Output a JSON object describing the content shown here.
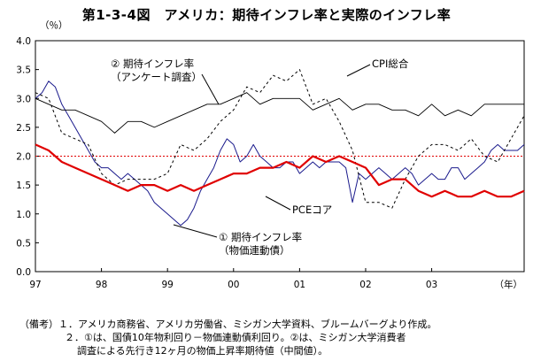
{
  "title": "第1-3-4図　アメリカ：期待インフレ率と実際のインフレ率",
  "chart_data": {
    "type": "line",
    "y_unit": "（％）",
    "x_unit": "（年）",
    "ylim": [
      0.0,
      4.0
    ],
    "y_ticks": [
      "0.0",
      "0.5",
      "1.0",
      "1.5",
      "2.0",
      "2.5",
      "3.0",
      "3.5",
      "4.0"
    ],
    "x_ticks": [
      "97",
      "98",
      "99",
      "00",
      "01",
      "02",
      "03"
    ],
    "xlim": [
      1997.0,
      2004.4
    ],
    "reference_line": {
      "y": 2.0,
      "style": "red-dotted"
    },
    "grid": false,
    "series": [
      {
        "name": "① 期待インフレ率（物価連動債）",
        "style": "blue-thin",
        "color": "#1a1a8c",
        "x": [
          1997.0,
          1997.1,
          1997.2,
          1997.3,
          1997.4,
          1997.5,
          1997.6,
          1997.7,
          1997.8,
          1997.9,
          1998.0,
          1998.1,
          1998.2,
          1998.3,
          1998.4,
          1998.5,
          1998.6,
          1998.7,
          1998.8,
          1998.9,
          1999.0,
          1999.1,
          1999.2,
          1999.3,
          1999.4,
          1999.5,
          1999.6,
          1999.7,
          1999.8,
          1999.9,
          2000.0,
          2000.1,
          2000.2,
          2000.3,
          2000.4,
          2000.5,
          2000.6,
          2000.7,
          2000.8,
          2000.9,
          2001.0,
          2001.1,
          2001.2,
          2001.3,
          2001.4,
          2001.5,
          2001.6,
          2001.7,
          2001.8,
          2001.9,
          2002.0,
          2002.1,
          2002.2,
          2002.3,
          2002.4,
          2002.5,
          2002.6,
          2002.7,
          2002.8,
          2002.9,
          2003.0,
          2003.1,
          2003.2,
          2003.3,
          2003.4,
          2003.5,
          2003.6,
          2003.7,
          2003.8,
          2003.9,
          2004.0,
          2004.1,
          2004.2,
          2004.3,
          2004.4
        ],
        "values": [
          3.0,
          3.1,
          3.3,
          3.2,
          2.9,
          2.7,
          2.5,
          2.3,
          2.1,
          1.9,
          1.8,
          1.8,
          1.7,
          1.6,
          1.7,
          1.6,
          1.5,
          1.4,
          1.2,
          1.1,
          1.0,
          0.9,
          0.8,
          0.9,
          1.1,
          1.4,
          1.6,
          1.8,
          2.1,
          2.3,
          2.2,
          1.9,
          2.0,
          2.2,
          2.0,
          1.9,
          1.8,
          1.8,
          1.9,
          1.9,
          1.7,
          1.8,
          1.9,
          1.8,
          1.9,
          1.9,
          1.9,
          1.8,
          1.2,
          1.7,
          1.6,
          1.7,
          1.8,
          1.7,
          1.6,
          1.7,
          1.8,
          1.7,
          1.5,
          1.6,
          1.7,
          1.6,
          1.6,
          1.8,
          1.8,
          1.6,
          1.7,
          1.8,
          1.9,
          2.1,
          2.2,
          2.1,
          2.1,
          2.1,
          2.2
        ]
      },
      {
        "name": "② 期待インフレ率（アンケート調査）",
        "style": "black-thin",
        "color": "#000000",
        "x": [
          1997.0,
          1997.2,
          1997.4,
          1997.6,
          1997.8,
          1998.0,
          1998.2,
          1998.4,
          1998.6,
          1998.8,
          1999.0,
          1999.2,
          1999.4,
          1999.6,
          1999.8,
          2000.0,
          2000.2,
          2000.4,
          2000.6,
          2000.8,
          2001.0,
          2001.2,
          2001.4,
          2001.6,
          2001.8,
          2002.0,
          2002.2,
          2002.4,
          2002.6,
          2002.8,
          2003.0,
          2003.2,
          2003.4,
          2003.6,
          2003.8,
          2004.0,
          2004.2,
          2004.4
        ],
        "values": [
          3.0,
          2.9,
          2.8,
          2.8,
          2.7,
          2.6,
          2.4,
          2.6,
          2.6,
          2.5,
          2.6,
          2.7,
          2.8,
          2.9,
          2.9,
          3.0,
          3.1,
          2.9,
          3.0,
          3.0,
          3.0,
          2.8,
          2.9,
          3.0,
          2.8,
          2.9,
          2.9,
          2.8,
          2.8,
          2.7,
          2.9,
          2.7,
          2.8,
          2.7,
          2.9,
          2.9,
          2.9,
          2.9
        ]
      },
      {
        "name": "CPI総合",
        "style": "black-solid",
        "color": "#000000",
        "x": [
          1997.0,
          1997.2,
          1997.4,
          1997.6,
          1997.8,
          1998.0,
          1998.2,
          1998.4,
          1998.6,
          1998.8,
          1999.0,
          1999.2,
          1999.4,
          1999.6,
          1999.8,
          2000.0,
          2000.2,
          2000.4,
          2000.6,
          2000.8,
          2001.0,
          2001.2,
          2001.4,
          2001.6,
          2001.8,
          2002.0,
          2002.2,
          2002.4,
          2002.6,
          2002.8,
          2003.0,
          2003.2,
          2003.4,
          2003.6,
          2003.8,
          2004.0,
          2004.2,
          2004.4
        ],
        "values": [
          3.1,
          3.0,
          2.4,
          2.3,
          2.2,
          1.7,
          1.5,
          1.6,
          1.6,
          1.6,
          1.7,
          2.2,
          2.1,
          2.3,
          2.6,
          2.8,
          3.2,
          3.1,
          3.4,
          3.3,
          3.5,
          2.9,
          3.0,
          2.6,
          2.1,
          1.2,
          1.2,
          1.1,
          1.6,
          2.0,
          2.2,
          2.2,
          2.1,
          2.3,
          2.0,
          1.9,
          2.3,
          2.7
        ]
      },
      {
        "name": "PCEコア",
        "style": "red-thick",
        "color": "#e00000",
        "x": [
          1997.0,
          1997.2,
          1997.4,
          1997.6,
          1997.8,
          1998.0,
          1998.2,
          1998.4,
          1998.6,
          1998.8,
          1999.0,
          1999.2,
          1999.4,
          1999.6,
          1999.8,
          2000.0,
          2000.2,
          2000.4,
          2000.6,
          2000.8,
          2001.0,
          2001.2,
          2001.4,
          2001.6,
          2001.8,
          2002.0,
          2002.2,
          2002.4,
          2002.6,
          2002.8,
          2003.0,
          2003.2,
          2003.4,
          2003.6,
          2003.8,
          2004.0,
          2004.2,
          2004.4
        ],
        "values": [
          2.2,
          2.1,
          1.9,
          1.8,
          1.7,
          1.6,
          1.5,
          1.4,
          1.5,
          1.5,
          1.4,
          1.5,
          1.4,
          1.5,
          1.6,
          1.7,
          1.7,
          1.8,
          1.8,
          1.9,
          1.8,
          2.0,
          1.9,
          2.0,
          1.9,
          1.8,
          1.5,
          1.6,
          1.6,
          1.4,
          1.3,
          1.4,
          1.3,
          1.3,
          1.4,
          1.3,
          1.3,
          1.4
        ]
      }
    ]
  },
  "annotations": {
    "expect_survey": [
      "② 期待インフレ率",
      "（アンケート調査）"
    ],
    "cpi": "CPI総合",
    "pce": "PCEコア",
    "expect_bond": [
      "① 期待インフレ率",
      "（物価連動債）"
    ]
  },
  "notes": [
    "（備考）１．アメリカ商務省、アメリカ労働省、ミシガン大学資料、ブルームバーグより作成。",
    "２．①は、国債10年物利回り－物価連動債利回り。②は、ミシガン大学消費者",
    "調査による先行き12ヶ月の物価上昇率期待値（中間値）。"
  ]
}
